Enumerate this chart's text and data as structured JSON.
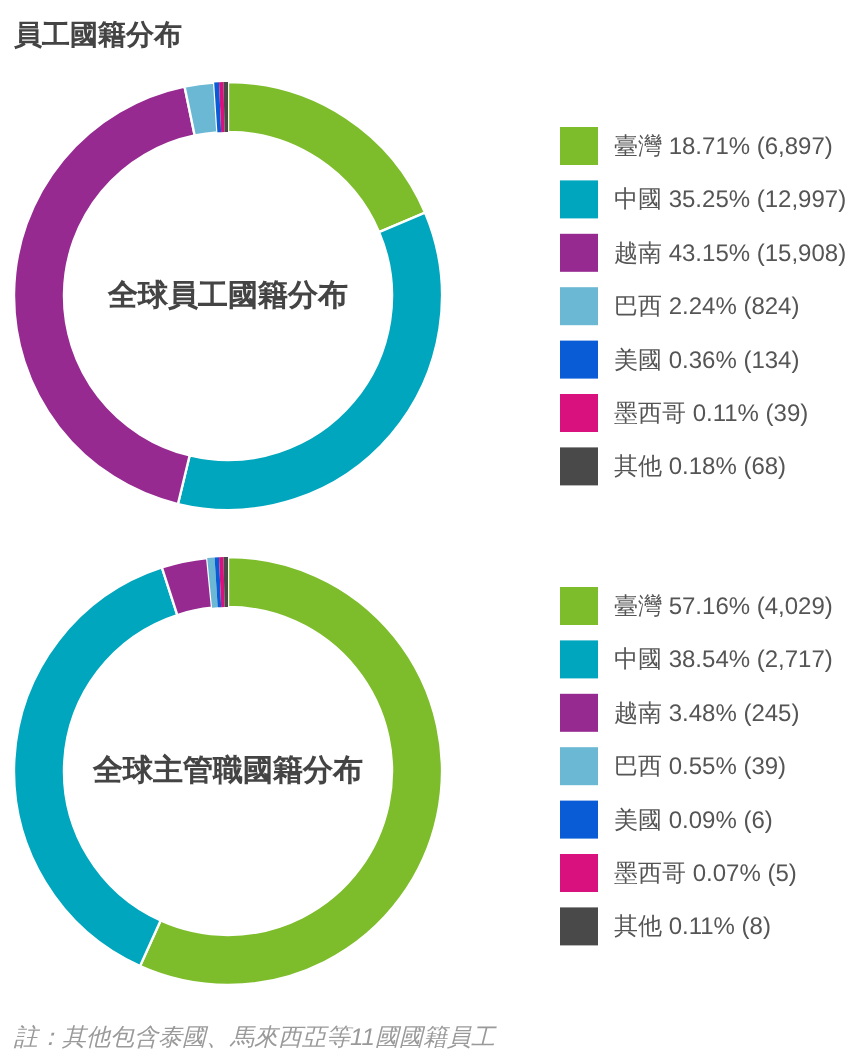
{
  "chart_data": [
    {
      "type": "donut",
      "title": "員工國籍分布",
      "annotations": [
        "全球員工國籍分布"
      ],
      "categories": [
        "臺灣",
        "中國",
        "越南",
        "巴西",
        "美國",
        "墨西哥",
        "其他"
      ],
      "values": [
        6897,
        12997,
        15908,
        824,
        134,
        39,
        68
      ],
      "value_labels": [
        "18.71% (6,897)",
        "35.25% (12,997)",
        "43.15% (15,908)",
        "2.24% (824)",
        "0.36% (134)",
        "0.11% (39)",
        "0.18% (68)"
      ],
      "colors": [
        "#7dbc2a",
        "#00a6bd",
        "#962a91",
        "#6ab8d3",
        "#0a5bd6",
        "#d9117f",
        "#494949"
      ],
      "legend": "right"
    },
    {
      "type": "donut",
      "annotations": [
        "全球主管職國籍分布",
        "註：其他包含泰國、馬來西亞等11國國籍員工"
      ],
      "categories": [
        "臺灣",
        "中國",
        "越南",
        "巴西",
        "美國",
        "墨西哥",
        "其他"
      ],
      "values": [
        4029,
        2717,
        245,
        39,
        6,
        5,
        8
      ],
      "value_labels": [
        "57.16% (4,029)",
        "38.54% (2,717)",
        "3.48% (245)",
        "0.55% (39)",
        "0.09% (6)",
        "0.07% (5)",
        "0.11% (8)"
      ],
      "colors": [
        "#7dbc2a",
        "#00a6bd",
        "#962a91",
        "#6ab8d3",
        "#0a5bd6",
        "#d9117f",
        "#494949"
      ],
      "legend": "right"
    }
  ]
}
